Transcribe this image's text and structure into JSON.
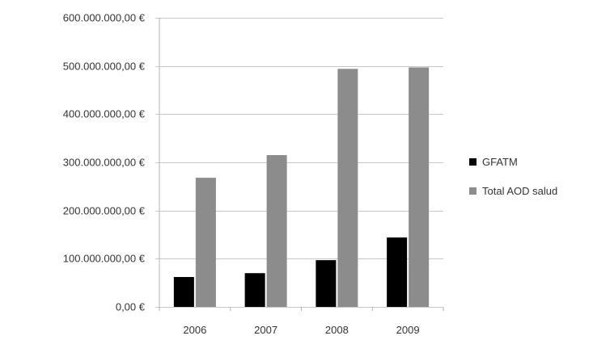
{
  "chart_data": {
    "type": "bar",
    "categories": [
      "2006",
      "2007",
      "2008",
      "2009"
    ],
    "series": [
      {
        "name": "GFATM",
        "color": "#000000",
        "values": [
          62000000,
          70000000,
          97000000,
          144000000
        ]
      },
      {
        "name": "Total AOD salud",
        "color": "#8c8c8c",
        "values": [
          268000000,
          315000000,
          494000000,
          497000000
        ]
      }
    ],
    "yticks": [
      "0,00 €",
      "100.000.000,00 €",
      "200.000.000,00 €",
      "300.000.000,00 €",
      "400.000.000,00 €",
      "500.000.000,00 €",
      "600.000.000,00 €"
    ],
    "ylim": [
      0,
      600000000
    ],
    "grid": true,
    "legend_position": "right",
    "title": "",
    "xlabel": "",
    "ylabel": ""
  }
}
